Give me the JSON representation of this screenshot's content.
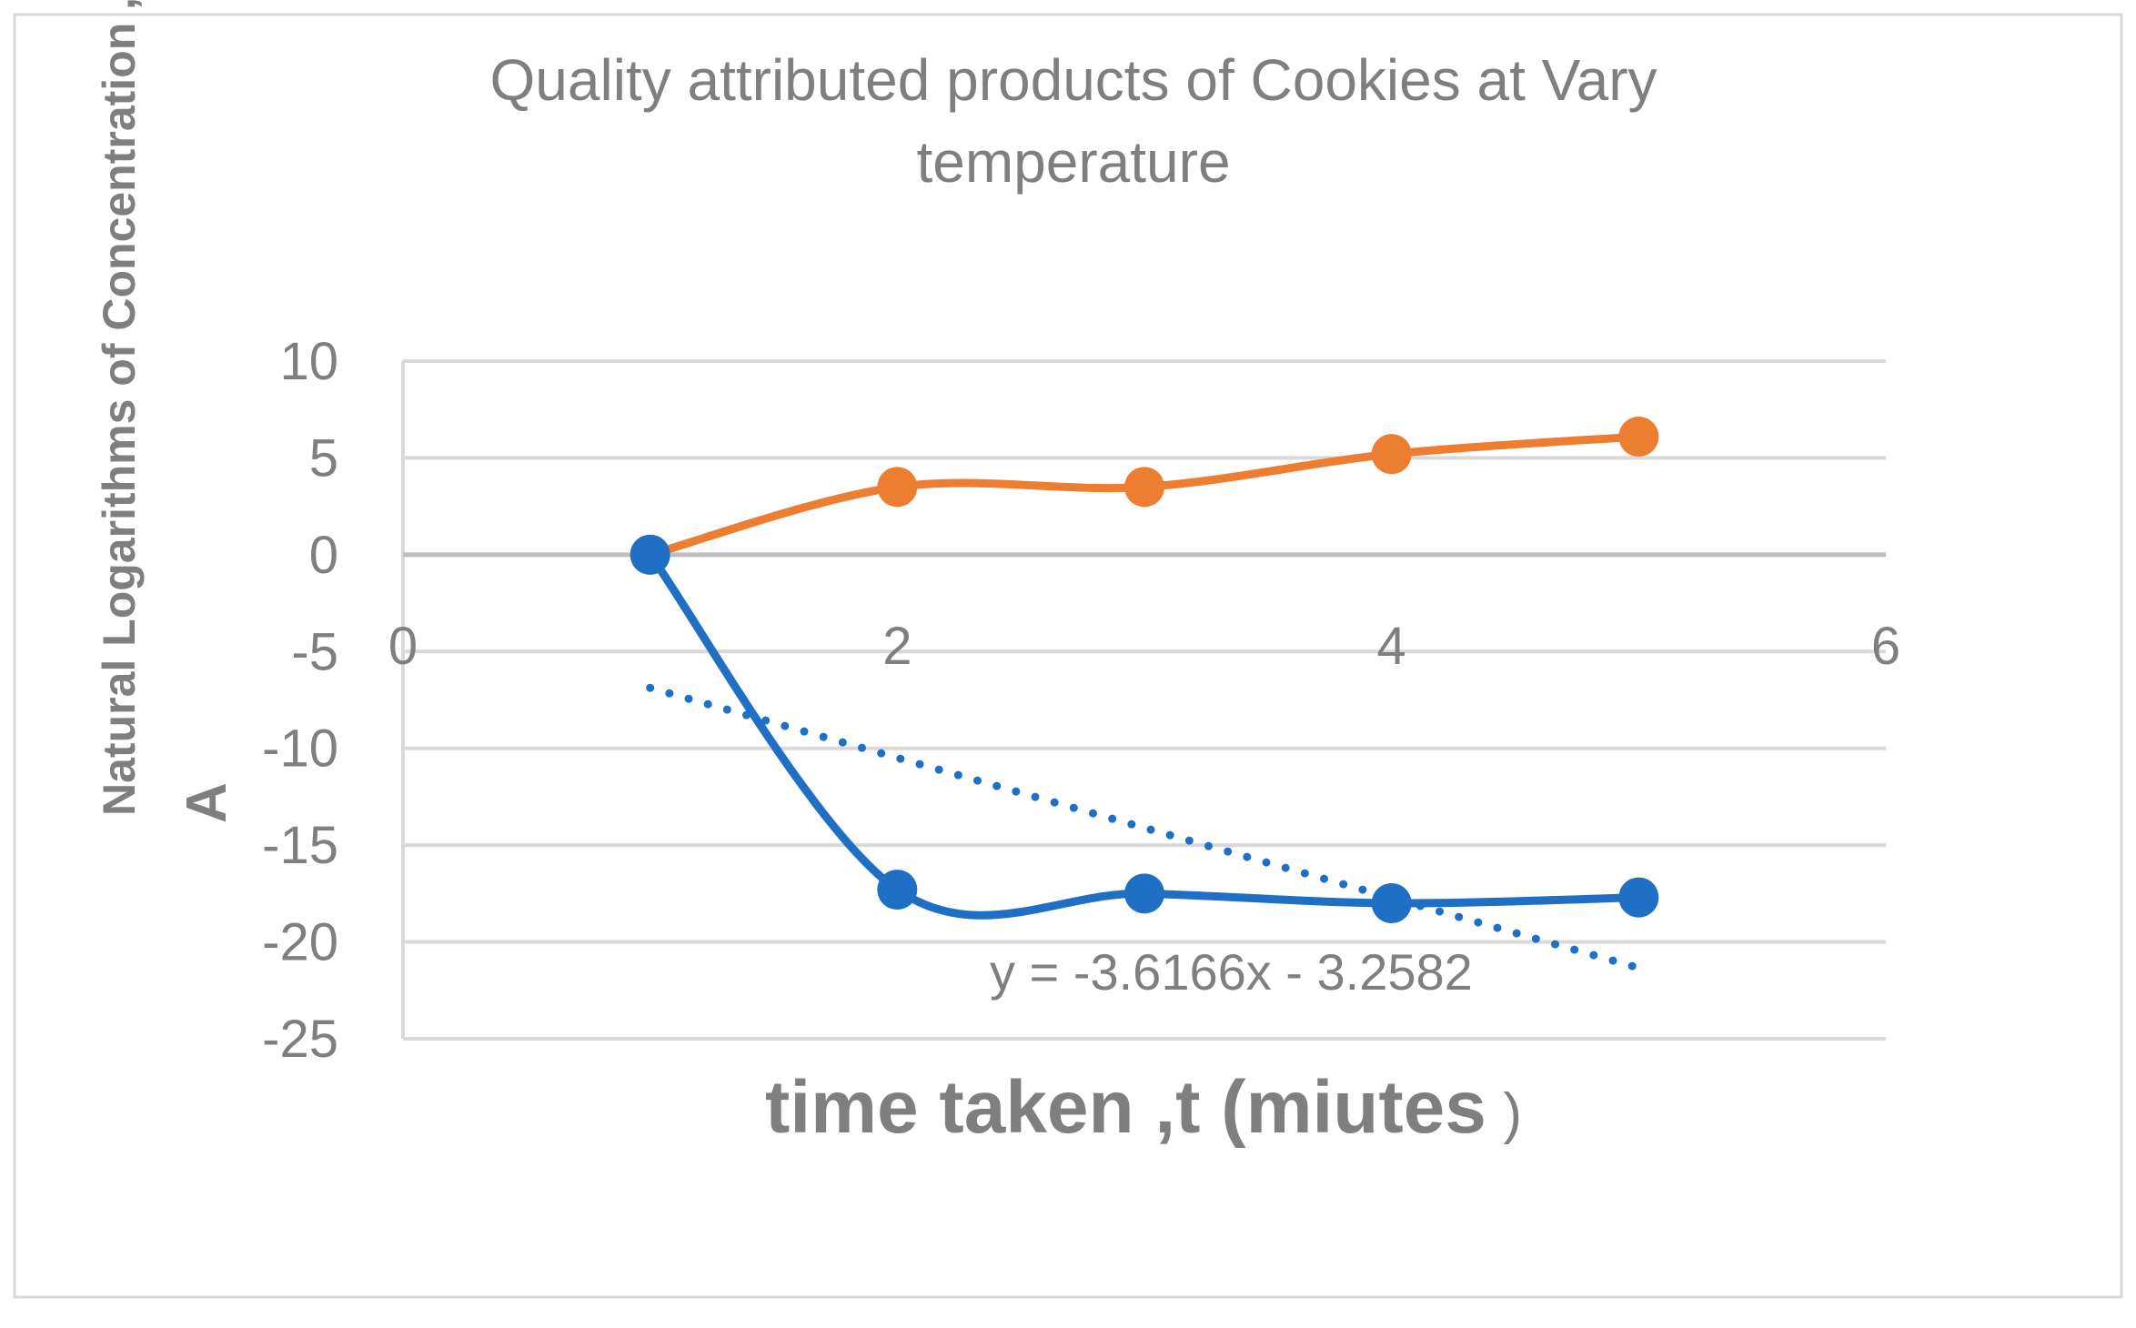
{
  "chart_data": {
    "type": "line",
    "title_lines": [
      "Quality attributed products of Cookies at Vary",
      "temperature"
    ],
    "xlabel": "time taken ,t (miutes",
    "xlabel_suffix": ")",
    "ylabel_lines": [
      "Natural Logarithms of Concentration ,",
      "A"
    ],
    "xlim": [
      0,
      6
    ],
    "ylim": [
      -25,
      10
    ],
    "x_ticks": [
      0,
      2,
      4,
      6
    ],
    "x_tick_labels": [
      "0",
      "2",
      "4",
      "6"
    ],
    "y_ticks": [
      10,
      5,
      0,
      -5,
      -10,
      -15,
      -20,
      -25
    ],
    "y_tick_labels": [
      "10",
      "5",
      "0",
      "-5",
      "-10",
      "-15",
      "-20",
      "-25"
    ],
    "grid": true,
    "smooth": true,
    "series": [
      {
        "color": "#ed7d31",
        "x": [
          1,
          2,
          3,
          4,
          5
        ],
        "y": [
          0,
          3.5,
          3.5,
          5.2,
          6.1
        ]
      },
      {
        "color": "#1f6fc5",
        "x": [
          1,
          2,
          3,
          4,
          5
        ],
        "y": [
          0,
          -17.3,
          -17.5,
          -18.0,
          -17.7
        ]
      }
    ],
    "trendline": {
      "series_index": 1,
      "type": "linear",
      "slope": -3.6166,
      "intercept": -3.2582,
      "x_range": [
        1,
        5
      ],
      "color": "#1f6fc5",
      "style": "dotted",
      "equation_label": "y = -3.6166x - 3.2582"
    }
  }
}
